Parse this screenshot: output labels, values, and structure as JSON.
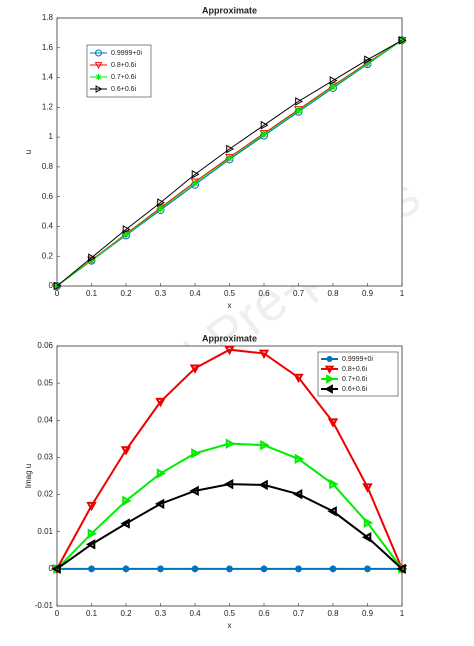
{
  "watermark": "Journal Pre-proofs",
  "chart_data": [
    {
      "type": "line",
      "title": "Approximate",
      "x_label": "x",
      "y_label": "u",
      "x": [
        0,
        0.1,
        0.2,
        0.3,
        0.4,
        0.5,
        0.6,
        0.7,
        0.8,
        0.9,
        1
      ],
      "xlim": [
        0,
        1
      ],
      "xticks": [
        0,
        0.1,
        0.2,
        0.3,
        0.4,
        0.5,
        0.6,
        0.7,
        0.8,
        0.9,
        1
      ],
      "ylim": [
        0,
        1.8
      ],
      "yticks": [
        0,
        0.2,
        0.4,
        0.6,
        0.8,
        1,
        1.2,
        1.4,
        1.6,
        1.8
      ],
      "legend": "upper left",
      "line_width": 1,
      "series": [
        {
          "name": "0.9999+0i",
          "color": "#0072bd",
          "marker": "circle",
          "values": [
            0,
            0.17,
            0.34,
            0.51,
            0.68,
            0.85,
            1.01,
            1.17,
            1.33,
            1.49,
            1.65
          ]
        },
        {
          "name": "0.8+0.6i",
          "color": "#ff0000",
          "marker": "triangle-down",
          "values": [
            0,
            0.175,
            0.35,
            0.525,
            0.7,
            0.865,
            1.025,
            1.185,
            1.345,
            1.5,
            1.65
          ]
        },
        {
          "name": "0.7+0.6i",
          "color": "#00ee00",
          "marker": "asterisk",
          "values": [
            0,
            0.172,
            0.345,
            0.518,
            0.69,
            0.858,
            1.018,
            1.178,
            1.338,
            1.495,
            1.65
          ]
        },
        {
          "name": "0.6+0.6i",
          "color": "#000000",
          "marker": "triangle-right",
          "values": [
            0,
            0.19,
            0.38,
            0.56,
            0.75,
            0.92,
            1.08,
            1.24,
            1.38,
            1.52,
            1.65
          ]
        }
      ]
    },
    {
      "type": "line",
      "title": "Approximate",
      "x_label": "x",
      "y_label": "Imag u",
      "x": [
        0,
        0.1,
        0.2,
        0.3,
        0.4,
        0.5,
        0.6,
        0.7,
        0.8,
        0.9,
        1
      ],
      "xlim": [
        0,
        1
      ],
      "xticks": [
        0,
        0.1,
        0.2,
        0.3,
        0.4,
        0.5,
        0.6,
        0.7,
        0.8,
        0.9,
        1
      ],
      "ylim": [
        -0.01,
        0.06
      ],
      "yticks": [
        -0.01,
        0,
        0.01,
        0.02,
        0.03,
        0.04,
        0.05,
        0.06
      ],
      "legend": "upper right",
      "line_width": 2,
      "series": [
        {
          "name": "0.9999+0i",
          "color": "#0072bd",
          "marker": "asterisk",
          "values": [
            0,
            0,
            0,
            0,
            0,
            0,
            0,
            0,
            0,
            0,
            0
          ]
        },
        {
          "name": "0.8+0.6i",
          "color": "#ee0000",
          "marker": "triangle-down",
          "values": [
            0,
            0.017,
            0.032,
            0.045,
            0.054,
            0.059,
            0.058,
            0.0515,
            0.0395,
            0.022,
            0
          ]
        },
        {
          "name": "0.7+0.6i",
          "color": "#00ee00",
          "marker": "triangle-right",
          "values": [
            0,
            0.0095,
            0.0183,
            0.0257,
            0.0311,
            0.0337,
            0.0333,
            0.0296,
            0.0228,
            0.0124,
            0
          ]
        },
        {
          "name": "0.6+0.6i",
          "color": "#000000",
          "marker": "triangle-left",
          "values": [
            0,
            0.0066,
            0.0122,
            0.0175,
            0.021,
            0.0228,
            0.0226,
            0.0201,
            0.0155,
            0.0085,
            0
          ]
        }
      ]
    }
  ]
}
